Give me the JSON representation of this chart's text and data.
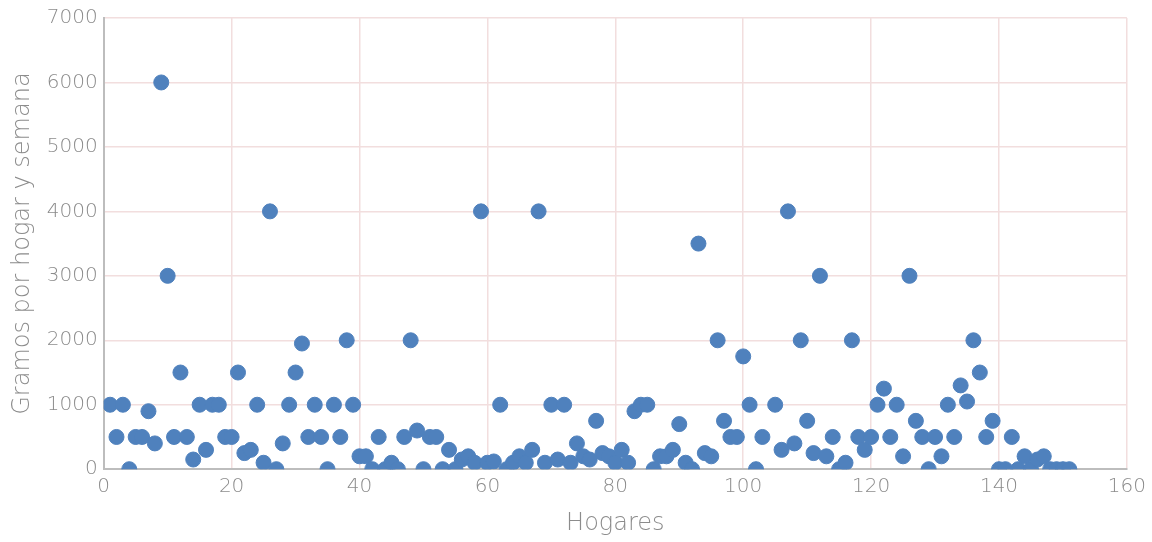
{
  "chart_data": {
    "type": "scatter",
    "xlabel": "Hogares",
    "ylabel": "Gramos por hogar y semana",
    "x": [
      1,
      2,
      3,
      4,
      5,
      6,
      7,
      8,
      9,
      10,
      11,
      12,
      13,
      14,
      15,
      16,
      17,
      18,
      19,
      20,
      21,
      22,
      23,
      24,
      25,
      26,
      27,
      28,
      29,
      30,
      31,
      32,
      33,
      34,
      35,
      36,
      37,
      38,
      39,
      40,
      41,
      42,
      43,
      44,
      45,
      46,
      47,
      48,
      49,
      50,
      51,
      52,
      53,
      54,
      55,
      56,
      57,
      58,
      59,
      60,
      61,
      62,
      63,
      64,
      65,
      66,
      67,
      68,
      69,
      70,
      71,
      72,
      73,
      74,
      75,
      76,
      77,
      78,
      79,
      80,
      81,
      82,
      83,
      84,
      85,
      86,
      87,
      88,
      89,
      90,
      91,
      92,
      93,
      94,
      95,
      96,
      97,
      98,
      99,
      100,
      101,
      102,
      103,
      104,
      105,
      106,
      107,
      108,
      109,
      110,
      111,
      112,
      113,
      114,
      115,
      116,
      117,
      118,
      119,
      120,
      121,
      122,
      123,
      124,
      125,
      126,
      127,
      128,
      129,
      130,
      131,
      132,
      133,
      134,
      135,
      136,
      137,
      138,
      139,
      140,
      141,
      142,
      143,
      144,
      145,
      146,
      147,
      148,
      149,
      150,
      151
    ],
    "values": [
      1000,
      500,
      1000,
      0,
      500,
      500,
      900,
      400,
      6000,
      3000,
      500,
      1500,
      500,
      150,
      1000,
      300,
      1000,
      1000,
      500,
      500,
      1500,
      250,
      300,
      1000,
      100,
      4000,
      0,
      400,
      1000,
      1500,
      1950,
      500,
      1000,
      500,
      0,
      1000,
      500,
      2000,
      1000,
      200,
      200,
      0,
      500,
      0,
      100,
      0,
      500,
      2000,
      600,
      0,
      500,
      500,
      0,
      300,
      0,
      150,
      200,
      100,
      4000,
      100,
      120,
      1000,
      0,
      100,
      200,
      100,
      300,
      4000,
      100,
      1000,
      150,
      1000,
      100,
      400,
      200,
      150,
      750,
      250,
      200,
      100,
      300,
      100,
      900,
      1000,
      1000,
      0,
      200,
      200,
      300,
      700,
      100,
      0,
      3500,
      250,
      200,
      2000,
      750,
      500,
      500,
      1750,
      1000,
      0,
      500,
      null,
      1000,
      300,
      4000,
      400,
      2000,
      750,
      250,
      3000,
      200,
      500,
      0,
      100,
      2000,
      500,
      300,
      500,
      1000,
      1250,
      500,
      1000,
      200,
      3000,
      750,
      500,
      0,
      500,
      200,
      1000,
      500,
      1300,
      1050,
      2000,
      1500,
      500,
      750,
      0,
      0,
      500,
      0,
      200,
      0,
      150,
      200,
      0,
      0,
      0,
      0
    ],
    "color": "#4f81bd",
    "marker": "circle",
    "grid": true,
    "xlim": [
      0,
      160
    ],
    "xticks": [
      0,
      20,
      40,
      60,
      80,
      100,
      120,
      140,
      160
    ],
    "ylim": [
      0,
      7000
    ],
    "yticks": [
      0,
      1000,
      2000,
      3000,
      4000,
      5000,
      6000,
      7000
    ]
  }
}
